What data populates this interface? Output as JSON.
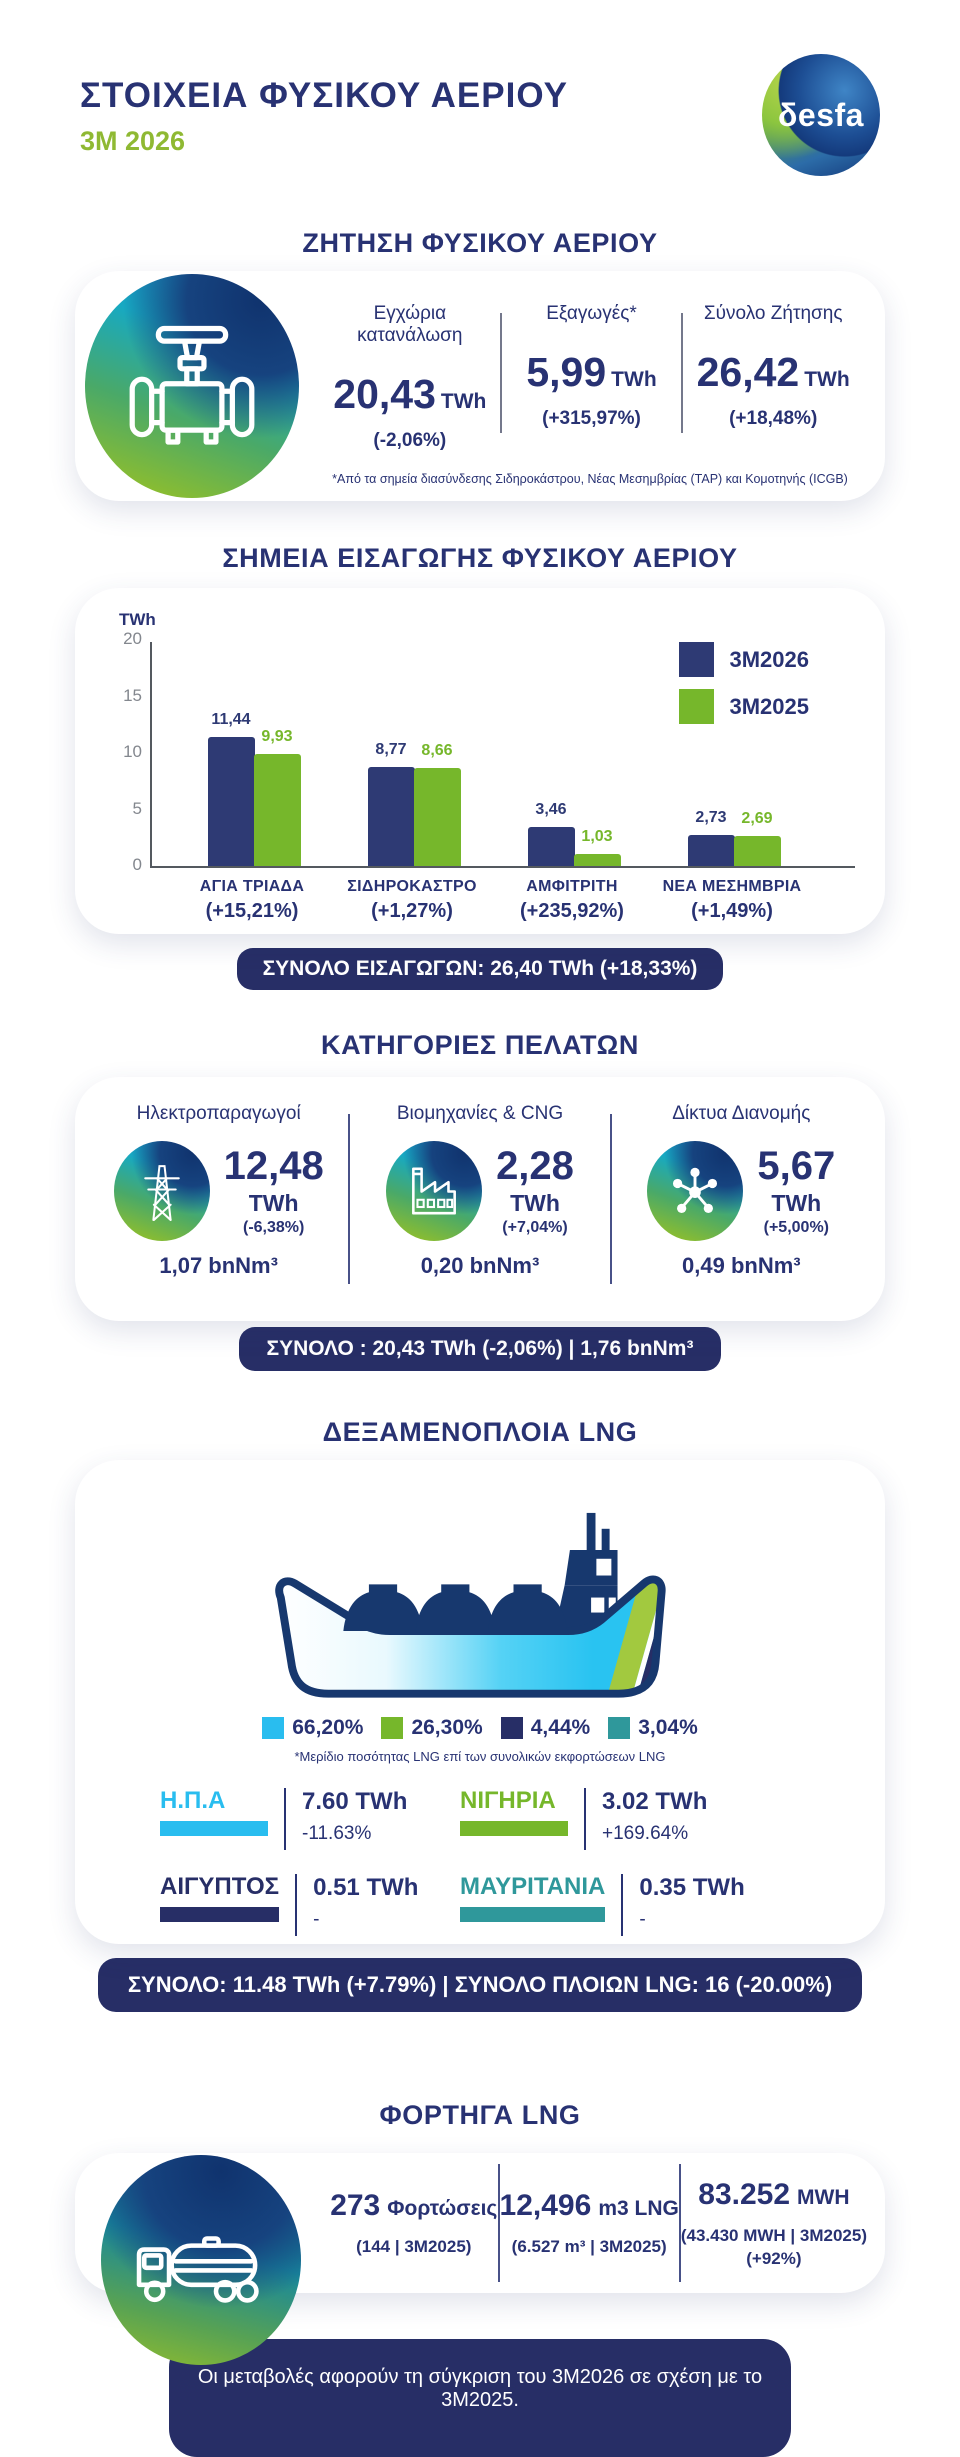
{
  "header": {
    "title": "ΣΤΟΙΧΕΙΑ ΦΥΣΙΚΟΥ ΑΕΡΙΟΥ",
    "period": "3M 2026",
    "logo_text": "δesfa"
  },
  "demand": {
    "section_title": "ΖΗΤΗΣΗ ΦΥΣΙΚΟΥ ΑΕΡΙΟΥ",
    "stats": [
      {
        "label": "Εγχώρια κατανάλωση",
        "value": "20,43",
        "unit": "TWh",
        "change": "(-2,06%)"
      },
      {
        "label": "Εξαγωγές*",
        "value": "5,99",
        "unit": "TWh",
        "change": "(+315,97%)"
      },
      {
        "label": "Σύνολο Ζήτησης",
        "value": "26,42",
        "unit": "TWh",
        "change": "(+18,48%)"
      }
    ],
    "footnote": "*Από τα σημεία διασύνδεσης Σιδηροκάστρου, Νέας Μεσημβρίας (TAP) και Κομοτηνής (ICGB)"
  },
  "entry_points": {
    "section_title": "ΣΗΜΕΙΑ ΕΙΣΑΓΩΓΗΣ ΦΥΣΙΚΟΥ ΑΕΡΙΟΥ",
    "total_badge": "ΣΥΝΟΛΟ ΕΙΣΑΓΩΓΩΝ: 26,40 TWh (+18,33%)"
  },
  "chart_data": {
    "type": "bar",
    "title": "ΣΗΜΕΙΑ ΕΙΣΑΓΩΓΗΣ ΦΥΣΙΚΟΥ ΑΕΡΙΟΥ",
    "ylabel": "TWh",
    "xlabel": "",
    "ylim": [
      0,
      20
    ],
    "yticks": [
      0,
      5,
      10,
      15,
      20
    ],
    "grid": false,
    "legend_position": "top-right",
    "categories": [
      "ΑΓΙΑ ΤΡΙΑΔΑ",
      "ΣΙΔΗΡΟΚΑΣΤΡΟ",
      "ΑΜΦΙΤΡΙΤΗ",
      "ΝΕΑ ΜΕΣΗΜΒΡΙΑ"
    ],
    "category_changes": [
      "(+15,21%)",
      "(+1,27%)",
      "(+235,92%)",
      "(+1,49%)"
    ],
    "series": [
      {
        "name": "3M2026",
        "color": "#2e3a74",
        "values": [
          11.44,
          8.77,
          3.46,
          2.73
        ],
        "labels": [
          "11,44",
          "8,77",
          "3,46",
          "2,73"
        ]
      },
      {
        "name": "3M2025",
        "color": "#76b72b",
        "values": [
          9.93,
          8.66,
          1.03,
          2.69
        ],
        "labels": [
          "9,93",
          "8,66",
          "1,03",
          "2,69"
        ]
      }
    ]
  },
  "customers": {
    "section_title": "ΚΑΤΗΓΟΡΙΕΣ ΠΕΛΑΤΩΝ",
    "items": [
      {
        "label": "Ηλεκτροπαραγωγοί",
        "value": "12,48",
        "unit": "TWh",
        "change": "(-6,38%)",
        "volume": "1,07 bnNm³"
      },
      {
        "label": "Βιομηχανίες & CNG",
        "value": "2,28",
        "unit": "TWh",
        "change": "(+7,04%)",
        "volume": "0,20 bnNm³"
      },
      {
        "label": "Δίκτυα Διανομής",
        "value": "5,67",
        "unit": "TWh",
        "change": "(+5,00%)",
        "volume": "0,49 bnNm³"
      }
    ],
    "total_badge": "ΣΥΝΟΛΟ : 20,43 TWh (-2,06%) | 1,76 bnNm³"
  },
  "ships": {
    "section_title": "ΔΕΞΑΜΕΝΟΠΛΟΙΑ LNG",
    "shares": [
      {
        "pct": "66,20%",
        "color": "#29bdef"
      },
      {
        "pct": "26,30%",
        "color": "#76b72b"
      },
      {
        "pct": "4,44%",
        "color": "#272e66"
      },
      {
        "pct": "3,04%",
        "color": "#2f989b"
      }
    ],
    "footnote": "*Μερίδιο ποσότητας LNG επί των συνολικών εκφορτώσεων LNG",
    "countries": [
      {
        "name": "Η.Π.Α",
        "color": "#29bdef",
        "value": "7.60 TWh",
        "change": "-11.63%"
      },
      {
        "name": "ΝΙΓΗΡΙΑ",
        "color": "#76b72b",
        "value": "3.02 TWh",
        "change": "+169.64%"
      },
      {
        "name": "ΑΙΓΥΠΤΟΣ",
        "color": "#272e66",
        "value": "0.51 TWh",
        "change": "-"
      },
      {
        "name": "ΜΑΥΡΙΤΑΝΙΑ",
        "color": "#2f989b",
        "value": "0.35 TWh",
        "change": "-"
      }
    ],
    "total_badge": "ΣΥΝΟΛΟ: 11.48 TWh (+7.79%) | ΣΥΝΟΛΟ ΠΛΟΙΩΝ LNG: 16 (-20.00%)"
  },
  "trucks": {
    "section_title": "ΦΟΡΤΗΓΑ LNG",
    "stats": [
      {
        "value": "273",
        "unit": "Φορτώσεις",
        "sub": "(144 | 3M2025)",
        "sub2": ""
      },
      {
        "value": "12,496",
        "unit": "m3 LNG",
        "sub": "(6.527 m³ | 3M2025)",
        "sub2": ""
      },
      {
        "value": "83.252",
        "unit": "MWH",
        "sub": "(43.430 MWH | 3M2025)",
        "sub2": "(+92%)"
      }
    ]
  },
  "footer": {
    "note": "Οι μεταβολές αφορούν τη σύγκριση του 3M2026 σε σχέση με το 3M2025."
  }
}
